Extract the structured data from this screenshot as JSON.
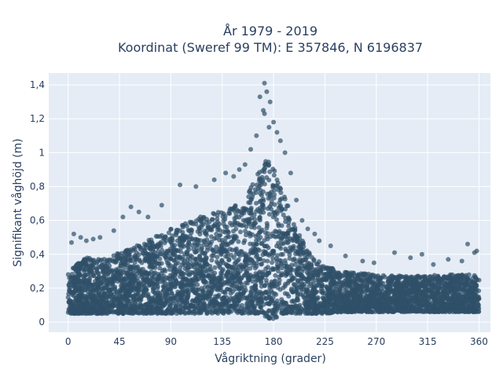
{
  "chart_data": {
    "type": "scatter",
    "title_lines": [
      "År 1979 - 2019",
      "Koordinat (Sweref 99 TM): E 357846, N 6196837"
    ],
    "xlabel": "Vågriktning (grader)",
    "ylabel": "Signifikant våghöjd (m)",
    "xlim": [
      -17,
      370
    ],
    "ylim": [
      -0.06,
      1.47
    ],
    "x_ticks": [
      0,
      45,
      90,
      135,
      180,
      225,
      270,
      315,
      360
    ],
    "x_tick_labels": [
      "0",
      "45",
      "90",
      "135",
      "180",
      "225",
      "270",
      "315",
      "360"
    ],
    "y_ticks": [
      0,
      0.2,
      0.4,
      0.6,
      0.8,
      1.0,
      1.2,
      1.4
    ],
    "y_tick_labels": [
      "0",
      "0,2",
      "0,4",
      "0,6",
      "0,8",
      "1",
      "1,2",
      "1,4"
    ],
    "grid": true,
    "background_color": "#e5ecf6",
    "marker_color": "#2f5068",
    "envelope": {
      "x": [
        0,
        15,
        30,
        45,
        60,
        75,
        90,
        105,
        120,
        135,
        150,
        160,
        170,
        175,
        180,
        190,
        200,
        210,
        225,
        240,
        270,
        300,
        330,
        360
      ],
      "upper": [
        0.3,
        0.38,
        0.37,
        0.41,
        0.45,
        0.5,
        0.55,
        0.6,
        0.64,
        0.66,
        0.7,
        0.8,
        0.93,
        0.96,
        0.92,
        0.75,
        0.55,
        0.42,
        0.33,
        0.3,
        0.28,
        0.27,
        0.28,
        0.28
      ],
      "lower": [
        0.05,
        0.05,
        0.05,
        0.05,
        0.05,
        0.05,
        0.05,
        0.05,
        0.05,
        0.05,
        0.05,
        0.05,
        0.05,
        0.02,
        0.02,
        0.05,
        0.05,
        0.05,
        0.05,
        0.06,
        0.06,
        0.06,
        0.06,
        0.06
      ]
    },
    "outliers": [
      {
        "x": 172,
        "y": 1.41
      },
      {
        "x": 174,
        "y": 1.36
      },
      {
        "x": 168,
        "y": 1.33
      },
      {
        "x": 177,
        "y": 1.3
      },
      {
        "x": 171,
        "y": 1.25
      },
      {
        "x": 172,
        "y": 1.23
      },
      {
        "x": 180,
        "y": 1.18
      },
      {
        "x": 176,
        "y": 1.15
      },
      {
        "x": 183,
        "y": 1.12
      },
      {
        "x": 165,
        "y": 1.1
      },
      {
        "x": 186,
        "y": 1.07
      },
      {
        "x": 160,
        "y": 1.02
      },
      {
        "x": 190,
        "y": 1.0
      },
      {
        "x": 155,
        "y": 0.93
      },
      {
        "x": 195,
        "y": 0.88
      },
      {
        "x": 200,
        "y": 0.72
      },
      {
        "x": 205,
        "y": 0.6
      },
      {
        "x": 210,
        "y": 0.55
      },
      {
        "x": 216,
        "y": 0.52
      },
      {
        "x": 220,
        "y": 0.48
      },
      {
        "x": 230,
        "y": 0.45
      },
      {
        "x": 243,
        "y": 0.39
      },
      {
        "x": 258,
        "y": 0.36
      },
      {
        "x": 268,
        "y": 0.35
      },
      {
        "x": 286,
        "y": 0.41
      },
      {
        "x": 300,
        "y": 0.38
      },
      {
        "x": 310,
        "y": 0.4
      },
      {
        "x": 320,
        "y": 0.34
      },
      {
        "x": 333,
        "y": 0.37
      },
      {
        "x": 345,
        "y": 0.36
      },
      {
        "x": 350,
        "y": 0.46
      },
      {
        "x": 356,
        "y": 0.41
      },
      {
        "x": 358,
        "y": 0.42
      },
      {
        "x": 3,
        "y": 0.47
      },
      {
        "x": 5,
        "y": 0.52
      },
      {
        "x": 11,
        "y": 0.5
      },
      {
        "x": 16,
        "y": 0.48
      },
      {
        "x": 22,
        "y": 0.49
      },
      {
        "x": 28,
        "y": 0.5
      },
      {
        "x": 40,
        "y": 0.54
      },
      {
        "x": 48,
        "y": 0.62
      },
      {
        "x": 55,
        "y": 0.68
      },
      {
        "x": 62,
        "y": 0.65
      },
      {
        "x": 70,
        "y": 0.62
      },
      {
        "x": 82,
        "y": 0.69
      },
      {
        "x": 98,
        "y": 0.81
      },
      {
        "x": 112,
        "y": 0.8
      },
      {
        "x": 128,
        "y": 0.84
      },
      {
        "x": 138,
        "y": 0.88
      },
      {
        "x": 145,
        "y": 0.86
      },
      {
        "x": 150,
        "y": 0.9
      }
    ]
  }
}
